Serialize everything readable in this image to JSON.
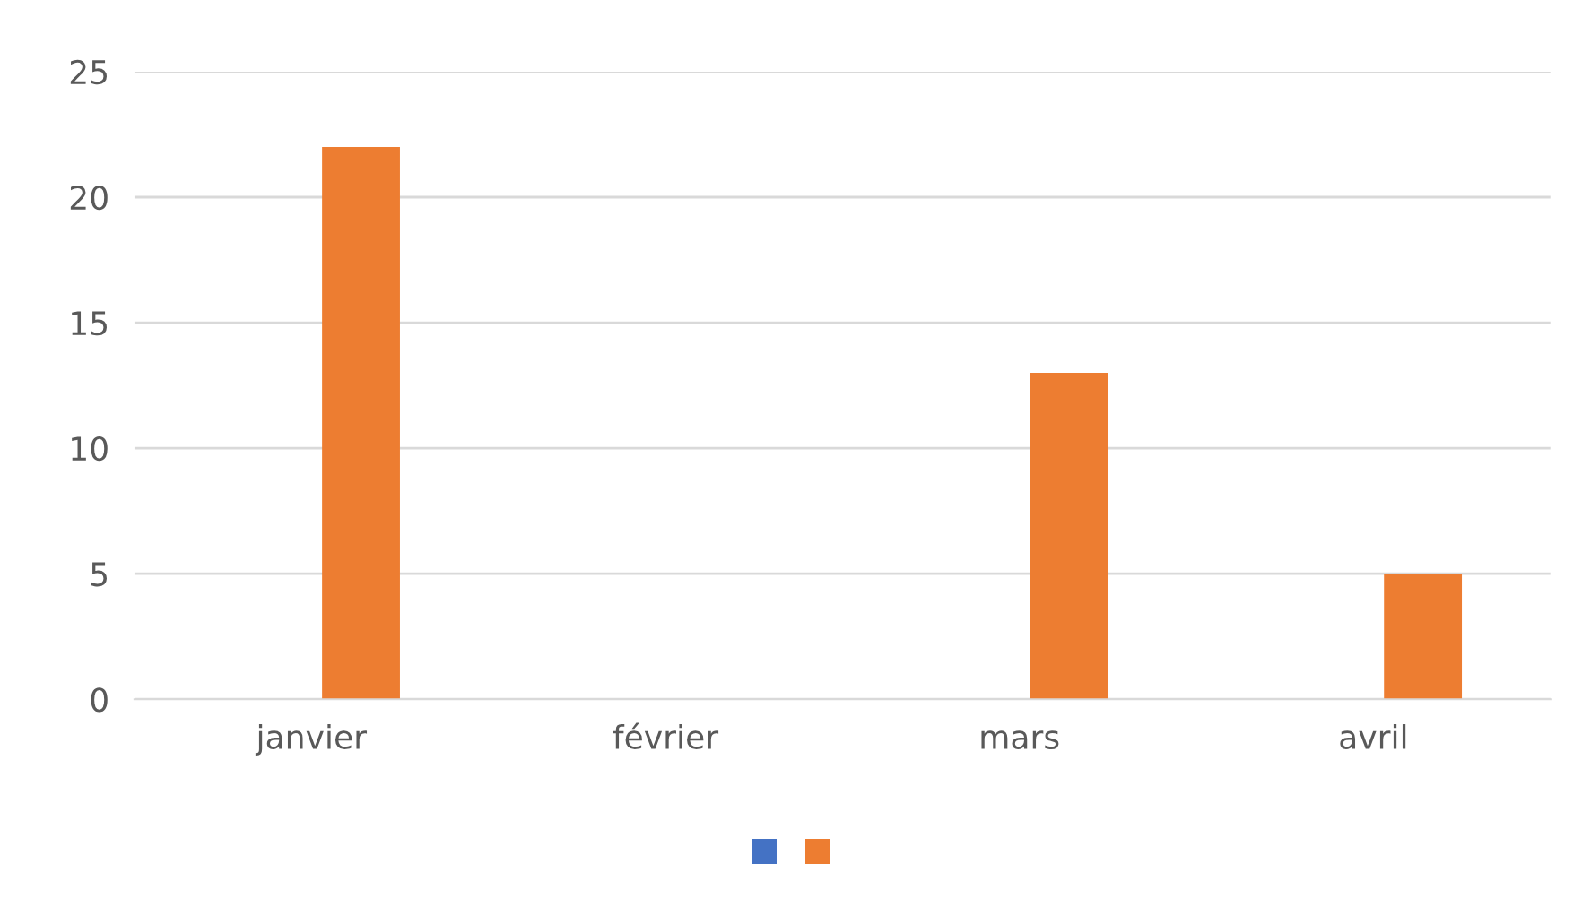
{
  "chart_data": {
    "type": "bar",
    "categories": [
      "janvier",
      "février",
      "mars",
      "avril"
    ],
    "series": [
      {
        "color": "#4472c4",
        "values": [
          0,
          0,
          0,
          0
        ]
      },
      {
        "color": "#ed7d31",
        "values": [
          22,
          0,
          13,
          5
        ]
      }
    ],
    "ylim": [
      0,
      25
    ],
    "yticks": [
      0,
      5,
      10,
      15,
      20,
      25
    ],
    "grid": "y"
  }
}
